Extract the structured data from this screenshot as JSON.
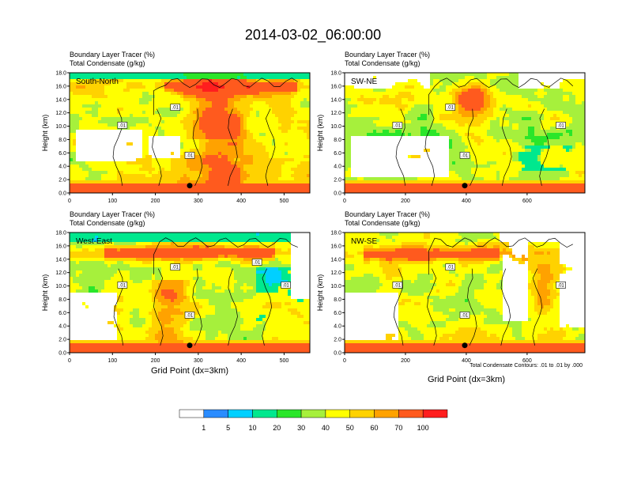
{
  "title": "2014-03-02_06:00:00",
  "footnote": "Total Condensate Contours: .01 to .01 by .000",
  "x_axis_title": "Grid Point (dx=3km)",
  "y_axis_title": "Height (km)",
  "header_line1": "Boundary Layer Tracer   (%)",
  "header_line2": "Total Condensate   (g/kg)",
  "colorbar": {
    "labels": [
      "1",
      "5",
      "10",
      "20",
      "30",
      "40",
      "50",
      "60",
      "70",
      "100"
    ],
    "colors": [
      "#ffffff",
      "#2a8cff",
      "#00d0ff",
      "#00e88e",
      "#2ae62a",
      "#a6f03c",
      "#ffff00",
      "#ffd200",
      "#ffa200",
      "#ff5a1e",
      "#ff1e1e"
    ]
  },
  "chart_data": [
    {
      "type": "heatmap",
      "panel_label": "South-North",
      "xlim": [
        0,
        560
      ],
      "ylim": [
        0,
        18
      ],
      "x_ticks": [
        "0",
        "100",
        "200",
        "300",
        "400",
        "500"
      ],
      "y_ticks": [
        "0.0",
        "2.0",
        "4.0",
        "6.0",
        "8.0",
        "10.0",
        "12.0",
        "14.0",
        "16.0",
        "18.0"
      ],
      "contour_labels": [
        ".01",
        ".01",
        ".01"
      ],
      "marker": {
        "x": 280,
        "y": 1.1
      }
    },
    {
      "type": "heatmap",
      "panel_label": "SW-NE",
      "xlim": [
        0,
        790
      ],
      "ylim": [
        0,
        18
      ],
      "x_ticks": [
        "0",
        "200",
        "400",
        "600"
      ],
      "y_ticks": [
        "0.0",
        "2.0",
        "4.0",
        "6.0",
        "8.0",
        "10.0",
        "12.0",
        "14.0",
        "16.0",
        "18.0"
      ],
      "contour_labels": [
        ".01",
        ".01",
        ".01",
        ".01"
      ],
      "marker": {
        "x": 395,
        "y": 1.1
      }
    },
    {
      "type": "heatmap",
      "panel_label": "West-East",
      "xlim": [
        0,
        560
      ],
      "ylim": [
        0,
        18
      ],
      "x_ticks": [
        "0",
        "100",
        "200",
        "300",
        "400",
        "500"
      ],
      "y_ticks": [
        "0.0",
        "2.0",
        "4.0",
        "6.0",
        "8.0",
        "10.0",
        "12.0",
        "14.0",
        "16.0",
        "18.0"
      ],
      "contour_labels": [
        ".01",
        ".01",
        ".01",
        ".01",
        ".01"
      ],
      "marker": {
        "x": 280,
        "y": 1.1
      }
    },
    {
      "type": "heatmap",
      "panel_label": "NW-SE",
      "xlim": [
        0,
        790
      ],
      "ylim": [
        0,
        18
      ],
      "x_ticks": [
        "0",
        "200",
        "400",
        "600"
      ],
      "y_ticks": [
        "0.0",
        "2.0",
        "4.0",
        "6.0",
        "8.0",
        "10.0",
        "12.0",
        "14.0",
        "16.0",
        "18.0"
      ],
      "contour_labels": [
        ".01",
        ".01",
        ".01",
        ".01"
      ],
      "marker": {
        "x": 395,
        "y": 1.1
      }
    }
  ]
}
